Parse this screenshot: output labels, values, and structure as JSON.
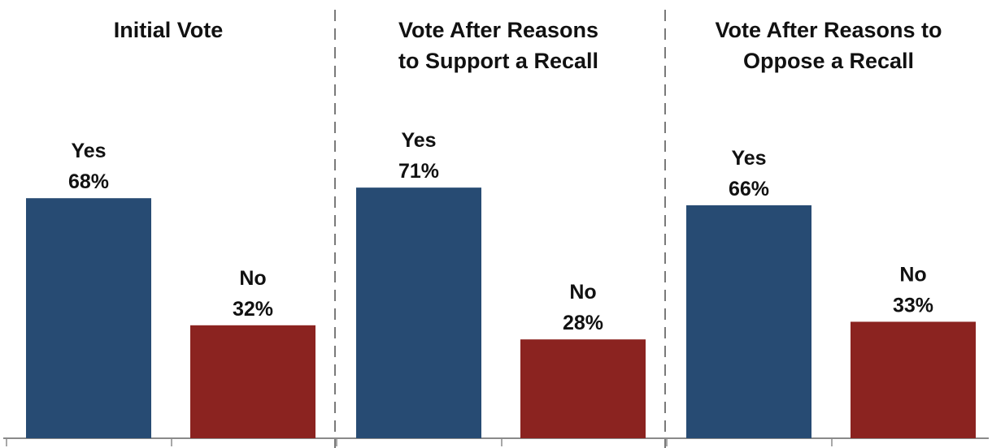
{
  "colors": {
    "yes": "#274b73",
    "no": "#8b2320",
    "divider": "#7a7a7a",
    "axis": "#8a8a8a"
  },
  "chart_data": [
    {
      "type": "bar",
      "title": "Initial Vote",
      "categories": [
        "Yes",
        "No"
      ],
      "values": [
        68,
        32
      ],
      "value_labels": [
        "68%",
        "32%"
      ],
      "ylim": [
        0,
        100
      ],
      "grid": false
    },
    {
      "type": "bar",
      "title": "Vote After Reasons\nto Support a Recall",
      "categories": [
        "Yes",
        "No"
      ],
      "values": [
        71,
        28
      ],
      "value_labels": [
        "71%",
        "28%"
      ],
      "ylim": [
        0,
        100
      ],
      "grid": false
    },
    {
      "type": "bar",
      "title": "Vote After Reasons to\nOppose a Recall",
      "categories": [
        "Yes",
        "No"
      ],
      "values": [
        66,
        33
      ],
      "value_labels": [
        "66%",
        "33%"
      ],
      "ylim": [
        0,
        100
      ],
      "grid": false
    }
  ]
}
